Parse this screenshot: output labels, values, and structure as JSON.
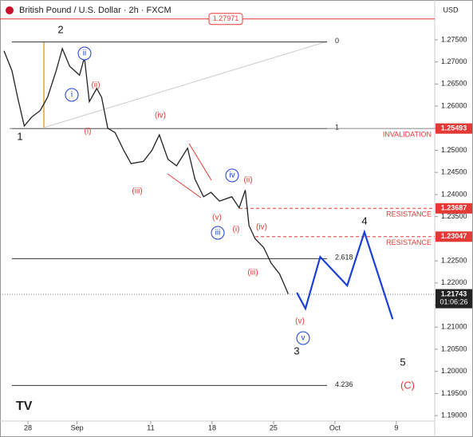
{
  "chart_data": {
    "type": "line",
    "title": "British Pound / U.S. Dollar · 2h · FXCM",
    "currency": "USD",
    "xlim": [
      -1.95,
      32.8
    ],
    "ylim": [
      1.1884,
      1.2831
    ],
    "xticks": [
      {
        "value": 0,
        "label": "28"
      },
      {
        "value": 4,
        "label": "Sep"
      },
      {
        "value": 10,
        "label": "11"
      },
      {
        "value": 15,
        "label": "18"
      },
      {
        "value": 20,
        "label": "25"
      },
      {
        "value": 25,
        "label": "Oct"
      },
      {
        "value": 30,
        "label": "9"
      }
    ],
    "yticks": [
      {
        "value": 1.19,
        "label": "1.19000"
      },
      {
        "value": 1.195,
        "label": "1.19500"
      },
      {
        "value": 1.2,
        "label": "1.20000"
      },
      {
        "value": 1.205,
        "label": "1.20500"
      },
      {
        "value": 1.21,
        "label": "1.21000"
      },
      {
        "value": 1.215,
        "label": "1.21500"
      },
      {
        "value": 1.22,
        "label": "1.22000"
      },
      {
        "value": 1.225,
        "label": "1.22500"
      },
      {
        "value": 1.23,
        "label": "1.23000"
      },
      {
        "value": 1.235,
        "label": "1.23500"
      },
      {
        "value": 1.24,
        "label": "1.24000"
      },
      {
        "value": 1.245,
        "label": "1.24500"
      },
      {
        "value": 1.25,
        "label": "1.25000"
      },
      {
        "value": 1.255,
        "label": "1.25500"
      },
      {
        "value": 1.26,
        "label": "1.26000"
      },
      {
        "value": 1.265,
        "label": "1.26500"
      },
      {
        "value": 1.27,
        "label": "1.27000"
      },
      {
        "value": 1.275,
        "label": "1.27500"
      }
    ],
    "series": [
      {
        "name": "GBPUSD",
        "color": "#222222",
        "x": [
          -1.95,
          -1.3,
          -0.84,
          -0.3,
          0.3,
          1.0,
          1.6,
          2.3,
          2.8,
          3.4,
          4.2,
          4.6,
          5.0,
          5.6,
          6.0,
          6.5,
          7.1,
          7.8,
          8.4,
          9.4,
          10.1,
          10.7,
          11.4,
          12.1,
          13.0,
          13.6,
          14.3,
          14.9,
          15.6,
          16.6,
          17.2,
          17.7,
          18.0,
          18.5,
          19.2,
          19.8,
          20.5,
          21.2
        ],
        "values": [
          1.2725,
          1.268,
          1.262,
          1.2555,
          1.2575,
          1.259,
          1.262,
          1.268,
          1.273,
          1.269,
          1.267,
          1.271,
          1.261,
          1.264,
          1.262,
          1.255,
          1.254,
          1.25,
          1.247,
          1.2475,
          1.25,
          1.2535,
          1.248,
          1.2465,
          1.2505,
          1.2435,
          1.2395,
          1.2405,
          1.2385,
          1.2395,
          1.237,
          1.241,
          1.233,
          1.23,
          1.228,
          1.2245,
          1.222,
          1.2175
        ]
      },
      {
        "name": "Projection",
        "color": "#1a3fd8",
        "x": [
          21.9,
          22.6,
          23.8,
          26.0,
          27.4,
          29.7
        ],
        "values": [
          1.2178,
          1.2142,
          1.2259,
          1.2194,
          1.2315,
          1.2118
        ]
      }
    ],
    "fib_levels": [
      {
        "value": 1.2745,
        "label": "0"
      },
      {
        "value": 1.2549,
        "label": "1"
      },
      {
        "value": 1.2255,
        "label": "2.618"
      },
      {
        "value": 1.1968,
        "label": "4.236"
      }
    ],
    "price_levels": [
      {
        "value": 1.27971,
        "color": "#e53935",
        "style": "outline"
      },
      {
        "value": 1.25493,
        "text": "INVALIDATION",
        "color": "#e53935",
        "style": "solid"
      },
      {
        "value": 1.23687,
        "text": "RESISTANCE",
        "color": "#e53935",
        "style": "dashed"
      },
      {
        "value": 1.23047,
        "text": "RESISTANCE",
        "color": "#e53935",
        "style": "dashed"
      },
      {
        "value": 1.21743,
        "text": "01:06:26",
        "color": "#222222",
        "style": "dotted"
      }
    ],
    "annotations": [
      {
        "text": "2",
        "color": "#111111"
      },
      {
        "text": "1",
        "color": "#111111"
      },
      {
        "text": "3",
        "color": "#111111"
      },
      {
        "text": "4",
        "color": "#111111"
      },
      {
        "text": "5",
        "color": "#111111"
      },
      {
        "text": "(C)",
        "color": "#e53935"
      },
      {
        "text": "(i)",
        "color": "#e53935"
      },
      {
        "text": "(ii)",
        "color": "#e53935"
      },
      {
        "text": "(iii)",
        "color": "#e53935"
      },
      {
        "text": "(iv)",
        "color": "#e53935"
      },
      {
        "text": "(v)",
        "color": "#e53935"
      },
      {
        "text": "(i)",
        "color": "#e53935"
      },
      {
        "text": "(ii)",
        "color": "#e53935"
      },
      {
        "text": "(iii)",
        "color": "#e53935"
      },
      {
        "text": "(iv)",
        "color": "#e53935"
      },
      {
        "text": "(v)",
        "color": "#e53935"
      },
      {
        "text": "i",
        "color": "#1a3fd8",
        "circled": true
      },
      {
        "text": "ii",
        "color": "#1a3fd8",
        "circled": true
      },
      {
        "text": "iii",
        "color": "#1a3fd8",
        "circled": true
      },
      {
        "text": "iv",
        "color": "#1a3fd8",
        "circled": true
      },
      {
        "text": "v",
        "color": "#1a3fd8",
        "circled": true
      }
    ]
  }
}
